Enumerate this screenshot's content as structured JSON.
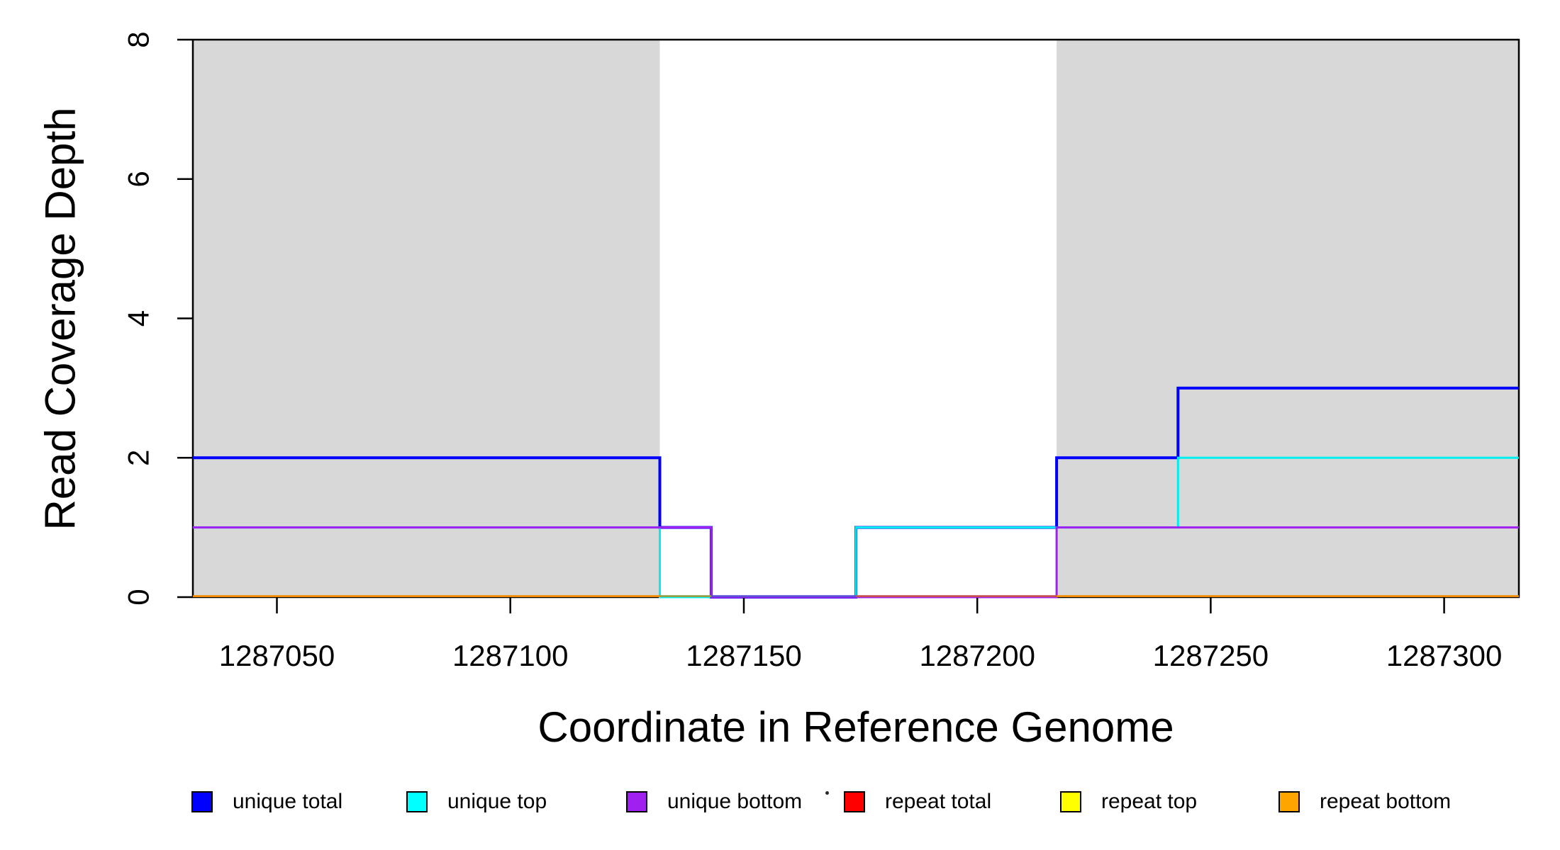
{
  "figure": {
    "background_color": "#FFFFFF",
    "xlabel": "Coordinate in Reference Genome",
    "ylabel": "Read Coverage Depth"
  },
  "chart_data": {
    "type": "line",
    "subtype": "step-coverage",
    "title": "",
    "xlabel": "Coordinate in Reference Genome",
    "ylabel": "Read Coverage Depth",
    "xlim": [
      1287032,
      1287316
    ],
    "ylim": [
      0,
      8
    ],
    "x_ticks": [
      1287050,
      1287100,
      1287150,
      1287200,
      1287250,
      1287300
    ],
    "y_ticks": [
      0,
      2,
      4,
      6,
      8
    ],
    "grid": false,
    "axis_color": "#000000",
    "shaded_repeat_regions": [
      {
        "x_start": 1287032,
        "x_end": 1287132,
        "color": "#D8D8D8"
      },
      {
        "x_start": 1287217,
        "x_end": 1287316,
        "color": "#D8D8D8"
      }
    ],
    "series": [
      {
        "name": "unique total",
        "color": "#0000FF",
        "line_width": 4,
        "steps": [
          [
            1287032,
            2
          ],
          [
            1287132,
            1
          ],
          [
            1287143,
            0
          ],
          [
            1287174,
            1
          ],
          [
            1287217,
            2
          ],
          [
            1287243,
            3
          ],
          [
            1287316,
            3
          ]
        ]
      },
      {
        "name": "unique top",
        "color": "#00EEEE",
        "line_width": 3,
        "steps": [
          [
            1287032,
            1
          ],
          [
            1287132,
            0
          ],
          [
            1287174,
            1
          ],
          [
            1287243,
            2
          ],
          [
            1287316,
            2
          ]
        ]
      },
      {
        "name": "unique bottom",
        "color": "#A020F0",
        "line_width": 3,
        "steps": [
          [
            1287032,
            1
          ],
          [
            1287143,
            0
          ],
          [
            1287217,
            1
          ],
          [
            1287316,
            1
          ]
        ]
      },
      {
        "name": "repeat total",
        "color": "#FF0000",
        "line_width": 3,
        "rendered_via": "baseline_visible_segments",
        "steps": [
          [
            1287032,
            0
          ],
          [
            1287316,
            0
          ]
        ]
      },
      {
        "name": "repeat top",
        "color": "#FFFF00",
        "line_width": 3,
        "rendered_via": "baseline_visible_segments",
        "steps": [
          [
            1287032,
            0
          ],
          [
            1287316,
            0
          ]
        ]
      },
      {
        "name": "repeat bottom",
        "color": "#FFA500",
        "line_width": 3,
        "rendered_via": "baseline_visible_segments",
        "steps": [
          [
            1287032,
            0
          ],
          [
            1287316,
            0
          ]
        ]
      }
    ],
    "baseline_visible_segments": [
      {
        "x_start": 1287032,
        "x_end": 1287132,
        "visible_color": "#F28C00",
        "source": "repeat bottom"
      },
      {
        "x_start": 1287132,
        "x_end": 1287143,
        "visible_color": "#8FA046",
        "source": "repeat top"
      },
      {
        "x_start": 1287143,
        "x_end": 1287174,
        "visible_color": "#5B4FD6",
        "source": "unique bottom"
      },
      {
        "x_start": 1287174,
        "x_end": 1287217,
        "visible_color": "#C65050",
        "source": "repeat total"
      },
      {
        "x_start": 1287217,
        "x_end": 1287316,
        "visible_color": "#F28C00",
        "source": "repeat bottom"
      }
    ],
    "legend_position": "bottom"
  },
  "legend": {
    "items": [
      {
        "label": "unique total",
        "color": "#0000FF"
      },
      {
        "label": "unique top",
        "color": "#00FFFF"
      },
      {
        "label": "unique bottom",
        "color": "#A020F0"
      },
      {
        "label": "repeat total",
        "color": "#FF0000"
      },
      {
        "label": "repeat top",
        "color": "#FFFF00"
      },
      {
        "label": "repeat bottom",
        "color": "#FFA500"
      }
    ]
  }
}
